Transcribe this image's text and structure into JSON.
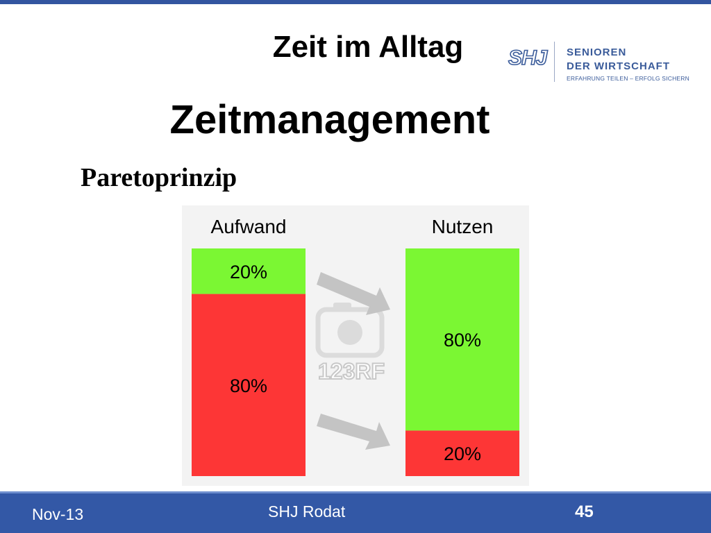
{
  "slide": {
    "title": "Zeit im Alltag",
    "heading": "Zeitmanagement",
    "subheading": "Paretoprinzip"
  },
  "logo": {
    "mark": "SHJ",
    "line1": "SENIOREN",
    "line2": "DER WIRTSCHAFT",
    "tagline": "ERFAHRUNG TEILEN – ERFOLG SICHERN"
  },
  "footer": {
    "date": "Nov-13",
    "center": "SHJ Rodat",
    "page": "45"
  },
  "colors": {
    "accent": "#3358a6",
    "green": "#7bf733",
    "red": "#fd3636",
    "arrow": "#c4c4c4"
  },
  "chart_data": {
    "type": "bar",
    "stacked": true,
    "categories": [
      "Aufwand",
      "Nutzen"
    ],
    "series": [
      {
        "values": [
          20,
          80
        ],
        "labels": [
          "20%",
          "80%"
        ],
        "color": "#7bf733"
      },
      {
        "values": [
          80,
          20
        ],
        "labels": [
          "80%",
          "20%"
        ],
        "color": "#fd3636"
      }
    ],
    "ylim": [
      0,
      100
    ],
    "watermark": "123RF"
  }
}
